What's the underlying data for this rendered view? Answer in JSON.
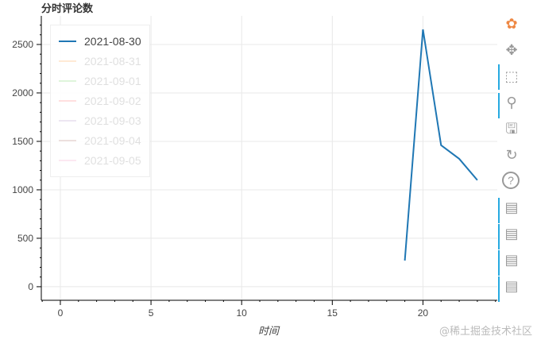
{
  "chart_data": {
    "type": "line",
    "title": "分时评论数",
    "xlabel": "时间",
    "ylabel": "",
    "xlim": [
      -1.05,
      24.1
    ],
    "ylim": [
      -140,
      2795
    ],
    "xticks": [
      0,
      5,
      10,
      15,
      20
    ],
    "yticks": [
      0,
      500,
      1000,
      1500,
      2000,
      2500
    ],
    "grid": true,
    "legend_position": "top-left",
    "series": [
      {
        "name": "2021-08-30",
        "color": "#1f77b4",
        "visible": true,
        "x": [
          19,
          20,
          21,
          22,
          23
        ],
        "y": [
          270,
          2655,
          1460,
          1320,
          1100
        ]
      },
      {
        "name": "2021-08-31",
        "color": "#ffbb78",
        "visible": false,
        "x": [],
        "y": []
      },
      {
        "name": "2021-09-01",
        "color": "#98df8a",
        "visible": false,
        "x": [],
        "y": []
      },
      {
        "name": "2021-09-02",
        "color": "#ff9896",
        "visible": false,
        "x": [],
        "y": []
      },
      {
        "name": "2021-09-03",
        "color": "#c5b0d5",
        "visible": false,
        "x": [],
        "y": []
      },
      {
        "name": "2021-09-04",
        "color": "#c49c94",
        "visible": false,
        "x": [],
        "y": []
      },
      {
        "name": "2021-09-05",
        "color": "#f7b6d2",
        "visible": false,
        "x": [],
        "y": []
      }
    ]
  },
  "toolbar": [
    {
      "icon": "bokeh-logo-icon"
    },
    {
      "icon": "pan-icon",
      "active": true
    },
    {
      "icon": "box-zoom-icon"
    },
    {
      "icon": "wheel-zoom-icon",
      "active": true
    },
    {
      "icon": "save-icon"
    },
    {
      "icon": "reset-icon"
    },
    {
      "icon": "help-icon"
    },
    {
      "icon": "hover-icon",
      "active": true
    },
    {
      "icon": "hover-icon",
      "active": true
    },
    {
      "icon": "hover-icon",
      "active": true
    },
    {
      "icon": "hover-icon",
      "active": true
    }
  ],
  "watermark": "@稀土掘金技术社区"
}
